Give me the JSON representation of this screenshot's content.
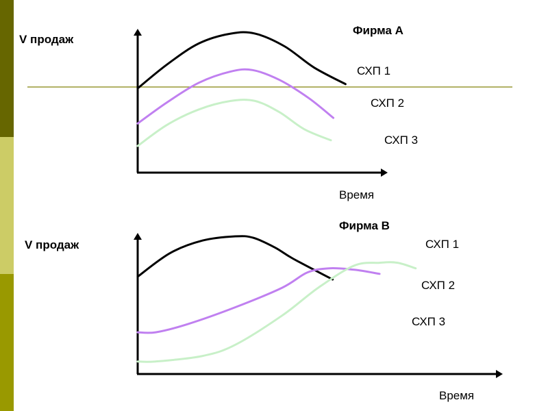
{
  "decoration": {
    "sidebar_colors": [
      "#666600",
      "#cccc66",
      "#999900"
    ],
    "rule_color": "#999933"
  },
  "chart_data": [
    {
      "type": "line",
      "title": "Фирма A",
      "ylabel": "V продаж",
      "xlabel": "Время",
      "xlim": [
        0,
        1
      ],
      "ylim": [
        0,
        1
      ],
      "grid": false,
      "series": [
        {
          "name": "СХП 1",
          "color": "#000000",
          "x": [
            0,
            0.12,
            0.25,
            0.38,
            0.48,
            0.6,
            0.72,
            0.85
          ],
          "y": [
            0.6,
            0.77,
            0.92,
            0.99,
            0.99,
            0.9,
            0.75,
            0.63
          ]
        },
        {
          "name": "СХП 2",
          "color": "#c080f0",
          "x": [
            0,
            0.12,
            0.25,
            0.38,
            0.47,
            0.58,
            0.7,
            0.8
          ],
          "y": [
            0.35,
            0.5,
            0.64,
            0.72,
            0.73,
            0.66,
            0.53,
            0.39
          ]
        },
        {
          "name": "СХП 3",
          "color": "#c8f0c8",
          "x": [
            0,
            0.12,
            0.25,
            0.38,
            0.48,
            0.58,
            0.68,
            0.79
          ],
          "y": [
            0.19,
            0.34,
            0.45,
            0.51,
            0.51,
            0.43,
            0.31,
            0.23
          ]
        }
      ]
    },
    {
      "type": "line",
      "title": "Фирма B",
      "ylabel": "V продаж",
      "xlabel": "Время",
      "xlim": [
        0,
        1
      ],
      "ylim": [
        0,
        1
      ],
      "grid": false,
      "series": [
        {
          "name": "СХП 1",
          "color": "#000000",
          "x": [
            0,
            0.09,
            0.18,
            0.27,
            0.32,
            0.38,
            0.43,
            0.54
          ],
          "y": [
            0.7,
            0.87,
            0.96,
            0.99,
            0.98,
            0.91,
            0.83,
            0.68
          ]
        },
        {
          "name": "СХП 2",
          "color": "#c080f0",
          "x": [
            0,
            0.05,
            0.14,
            0.27,
            0.4,
            0.47,
            0.53,
            0.6,
            0.67
          ],
          "y": [
            0.3,
            0.3,
            0.36,
            0.48,
            0.62,
            0.73,
            0.76,
            0.75,
            0.72
          ]
        },
        {
          "name": "СХП 3",
          "color": "#c8f0c8",
          "x": [
            0,
            0.05,
            0.18,
            0.27,
            0.4,
            0.5,
            0.6,
            0.67,
            0.72,
            0.77
          ],
          "y": [
            0.09,
            0.09,
            0.13,
            0.21,
            0.42,
            0.62,
            0.78,
            0.8,
            0.8,
            0.76
          ]
        }
      ]
    }
  ]
}
